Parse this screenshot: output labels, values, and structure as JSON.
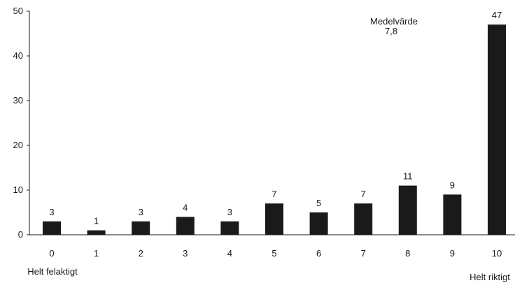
{
  "chart_data": {
    "type": "bar",
    "categories": [
      "0",
      "1",
      "2",
      "3",
      "4",
      "5",
      "6",
      "7",
      "8",
      "9",
      "10"
    ],
    "values": [
      3,
      1,
      3,
      4,
      3,
      7,
      5,
      7,
      11,
      9,
      47
    ],
    "ylim": [
      0,
      50
    ],
    "yticks": [
      "0",
      "10",
      "20",
      "30",
      "40",
      "50"
    ],
    "grid": false,
    "bar_color": "#1a1a1a",
    "annotations": {
      "left_end": "Helt felaktigt",
      "right_end": "Helt riktigt",
      "mean_label": "Medelvärde",
      "mean_value": "7,8"
    }
  }
}
